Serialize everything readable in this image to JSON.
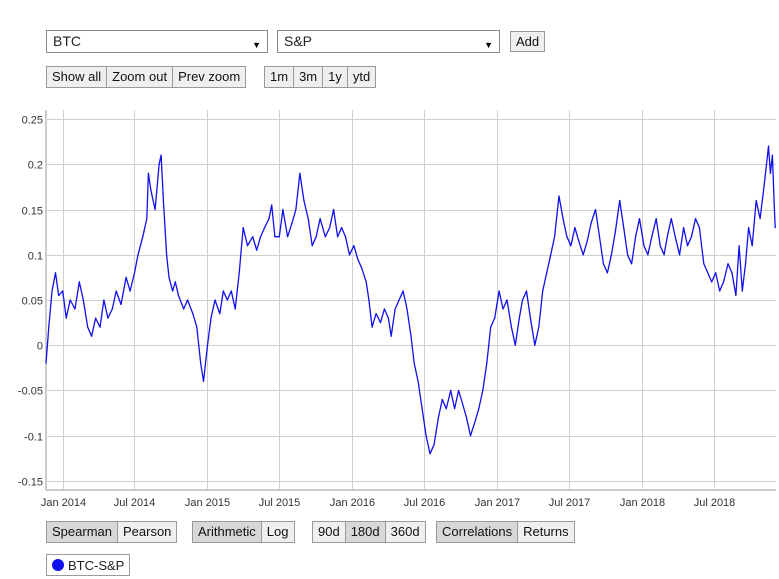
{
  "controls": {
    "asset1": "BTC",
    "asset2": "S&P",
    "add_label": "Add",
    "zoom": [
      "Show all",
      "Zoom out",
      "Prev zoom"
    ],
    "ranges": [
      "1m",
      "3m",
      "1y",
      "ytd"
    ],
    "correlation_methods": [
      "Spearman",
      "Pearson"
    ],
    "correlation_method_selected": "Spearman",
    "return_types": [
      "Arithmetic",
      "Log"
    ],
    "return_type_selected": "Arithmetic",
    "windows": [
      "90d",
      "180d",
      "360d"
    ],
    "window_selected": "180d",
    "views": [
      "Correlations",
      "Returns"
    ],
    "view_selected": "Correlations"
  },
  "legend": {
    "label": "BTC-S&P",
    "color": "#1010ee"
  },
  "chart_data": {
    "type": "line",
    "title": "",
    "xlabel": "",
    "ylabel": "",
    "xlim": [
      "2013-11-20",
      "2018-12-04"
    ],
    "ylim": [
      -0.16,
      0.26
    ],
    "grid": true,
    "y_ticks": [
      "-0.15",
      "-0.1",
      "-0.05",
      "0",
      "0.05",
      "0.1",
      "0.15",
      "0.2",
      "0.25"
    ],
    "x_ticks": [
      {
        "date": "2014-01-01",
        "label": "Jan 2014"
      },
      {
        "date": "2014-07-01",
        "label": "Jul 2014"
      },
      {
        "date": "2015-01-01",
        "label": "Jan 2015"
      },
      {
        "date": "2015-07-01",
        "label": "Jul 2015"
      },
      {
        "date": "2016-01-01",
        "label": "Jan 2016"
      },
      {
        "date": "2016-07-01",
        "label": "Jul 2016"
      },
      {
        "date": "2017-01-01",
        "label": "Jan 2017"
      },
      {
        "date": "2017-07-01",
        "label": "Jul 2017"
      },
      {
        "date": "2018-01-01",
        "label": "Jan 2018"
      },
      {
        "date": "2018-07-01",
        "label": "Jul 2018"
      }
    ],
    "series": [
      {
        "name": "BTC-S&P",
        "color": "#1010ee",
        "points": [
          [
            "2013-11-20",
            -0.02
          ],
          [
            "2013-11-27",
            0.02
          ],
          [
            "2013-12-05",
            0.06
          ],
          [
            "2013-12-14",
            0.08
          ],
          [
            "2013-12-22",
            0.055
          ],
          [
            "2014-01-01",
            0.06
          ],
          [
            "2014-01-10",
            0.03
          ],
          [
            "2014-01-20",
            0.05
          ],
          [
            "2014-02-01",
            0.04
          ],
          [
            "2014-02-12",
            0.07
          ],
          [
            "2014-02-22",
            0.05
          ],
          [
            "2014-03-05",
            0.02
          ],
          [
            "2014-03-15",
            0.01
          ],
          [
            "2014-03-25",
            0.03
          ],
          [
            "2014-04-05",
            0.02
          ],
          [
            "2014-04-15",
            0.05
          ],
          [
            "2014-04-25",
            0.03
          ],
          [
            "2014-05-06",
            0.04
          ],
          [
            "2014-05-16",
            0.06
          ],
          [
            "2014-05-28",
            0.045
          ],
          [
            "2014-06-10",
            0.075
          ],
          [
            "2014-06-20",
            0.06
          ],
          [
            "2014-07-01",
            0.08
          ],
          [
            "2014-07-10",
            0.1
          ],
          [
            "2014-07-22",
            0.12
          ],
          [
            "2014-08-01",
            0.14
          ],
          [
            "2014-08-05",
            0.19
          ],
          [
            "2014-08-12",
            0.17
          ],
          [
            "2014-08-22",
            0.15
          ],
          [
            "2014-09-01",
            0.2
          ],
          [
            "2014-09-06",
            0.21
          ],
          [
            "2014-09-12",
            0.16
          ],
          [
            "2014-09-20",
            0.1
          ],
          [
            "2014-09-26",
            0.075
          ],
          [
            "2014-10-05",
            0.06
          ],
          [
            "2014-10-12",
            0.07
          ],
          [
            "2014-10-20",
            0.055
          ],
          [
            "2014-11-02",
            0.04
          ],
          [
            "2014-11-12",
            0.05
          ],
          [
            "2014-11-25",
            0.035
          ],
          [
            "2014-12-05",
            0.02
          ],
          [
            "2014-12-15",
            -0.02
          ],
          [
            "2014-12-22",
            -0.04
          ],
          [
            "2015-01-01",
            0.0
          ],
          [
            "2015-01-10",
            0.03
          ],
          [
            "2015-01-20",
            0.05
          ],
          [
            "2015-02-01",
            0.035
          ],
          [
            "2015-02-10",
            0.06
          ],
          [
            "2015-02-20",
            0.05
          ],
          [
            "2015-03-02",
            0.06
          ],
          [
            "2015-03-12",
            0.04
          ],
          [
            "2015-03-22",
            0.08
          ],
          [
            "2015-04-01",
            0.13
          ],
          [
            "2015-04-12",
            0.11
          ],
          [
            "2015-04-25",
            0.12
          ],
          [
            "2015-05-05",
            0.105
          ],
          [
            "2015-05-15",
            0.12
          ],
          [
            "2015-05-25",
            0.13
          ],
          [
            "2015-06-05",
            0.14
          ],
          [
            "2015-06-12",
            0.155
          ],
          [
            "2015-06-20",
            0.12
          ],
          [
            "2015-07-01",
            0.12
          ],
          [
            "2015-07-10",
            0.15
          ],
          [
            "2015-07-22",
            0.12
          ],
          [
            "2015-08-02",
            0.135
          ],
          [
            "2015-08-12",
            0.15
          ],
          [
            "2015-08-22",
            0.19
          ],
          [
            "2015-09-01",
            0.16
          ],
          [
            "2015-09-12",
            0.14
          ],
          [
            "2015-09-22",
            0.11
          ],
          [
            "2015-10-02",
            0.12
          ],
          [
            "2015-10-12",
            0.14
          ],
          [
            "2015-10-25",
            0.12
          ],
          [
            "2015-11-05",
            0.13
          ],
          [
            "2015-11-15",
            0.15
          ],
          [
            "2015-11-25",
            0.12
          ],
          [
            "2015-12-05",
            0.13
          ],
          [
            "2015-12-15",
            0.12
          ],
          [
            "2015-12-25",
            0.1
          ],
          [
            "2016-01-05",
            0.11
          ],
          [
            "2016-01-15",
            0.095
          ],
          [
            "2016-01-25",
            0.085
          ],
          [
            "2016-02-05",
            0.07
          ],
          [
            "2016-02-12",
            0.05
          ],
          [
            "2016-02-20",
            0.02
          ],
          [
            "2016-03-01",
            0.035
          ],
          [
            "2016-03-12",
            0.025
          ],
          [
            "2016-03-22",
            0.04
          ],
          [
            "2016-04-01",
            0.03
          ],
          [
            "2016-04-08",
            0.01
          ],
          [
            "2016-04-18",
            0.04
          ],
          [
            "2016-04-28",
            0.05
          ],
          [
            "2016-05-08",
            0.06
          ],
          [
            "2016-05-18",
            0.04
          ],
          [
            "2016-05-28",
            0.01
          ],
          [
            "2016-06-05",
            -0.02
          ],
          [
            "2016-06-15",
            -0.04
          ],
          [
            "2016-06-25",
            -0.07
          ],
          [
            "2016-07-05",
            -0.1
          ],
          [
            "2016-07-15",
            -0.12
          ],
          [
            "2016-07-25",
            -0.11
          ],
          [
            "2016-08-05",
            -0.08
          ],
          [
            "2016-08-15",
            -0.06
          ],
          [
            "2016-08-25",
            -0.07
          ],
          [
            "2016-09-05",
            -0.05
          ],
          [
            "2016-09-15",
            -0.07
          ],
          [
            "2016-09-25",
            -0.05
          ],
          [
            "2016-10-05",
            -0.065
          ],
          [
            "2016-10-15",
            -0.08
          ],
          [
            "2016-10-25",
            -0.1
          ],
          [
            "2016-11-05",
            -0.085
          ],
          [
            "2016-11-15",
            -0.07
          ],
          [
            "2016-11-25",
            -0.05
          ],
          [
            "2016-12-05",
            -0.02
          ],
          [
            "2016-12-15",
            0.02
          ],
          [
            "2016-12-25",
            0.03
          ],
          [
            "2017-01-05",
            0.06
          ],
          [
            "2017-01-15",
            0.04
          ],
          [
            "2017-01-25",
            0.05
          ],
          [
            "2017-02-05",
            0.02
          ],
          [
            "2017-02-15",
            0.0
          ],
          [
            "2017-02-25",
            0.03
          ],
          [
            "2017-03-05",
            0.05
          ],
          [
            "2017-03-15",
            0.06
          ],
          [
            "2017-03-25",
            0.03
          ],
          [
            "2017-04-05",
            0.0
          ],
          [
            "2017-04-15",
            0.02
          ],
          [
            "2017-04-25",
            0.06
          ],
          [
            "2017-05-05",
            0.08
          ],
          [
            "2017-05-15",
            0.1
          ],
          [
            "2017-05-25",
            0.12
          ],
          [
            "2017-06-05",
            0.165
          ],
          [
            "2017-06-15",
            0.14
          ],
          [
            "2017-06-25",
            0.12
          ],
          [
            "2017-07-05",
            0.11
          ],
          [
            "2017-07-15",
            0.13
          ],
          [
            "2017-07-25",
            0.115
          ],
          [
            "2017-08-05",
            0.1
          ],
          [
            "2017-08-15",
            0.115
          ],
          [
            "2017-08-25",
            0.135
          ],
          [
            "2017-09-05",
            0.15
          ],
          [
            "2017-09-15",
            0.12
          ],
          [
            "2017-09-25",
            0.09
          ],
          [
            "2017-10-05",
            0.08
          ],
          [
            "2017-10-15",
            0.1
          ],
          [
            "2017-10-25",
            0.125
          ],
          [
            "2017-11-05",
            0.16
          ],
          [
            "2017-11-15",
            0.13
          ],
          [
            "2017-11-25",
            0.1
          ],
          [
            "2017-12-05",
            0.09
          ],
          [
            "2017-12-15",
            0.12
          ],
          [
            "2017-12-25",
            0.14
          ],
          [
            "2018-01-05",
            0.11
          ],
          [
            "2018-01-15",
            0.1
          ],
          [
            "2018-01-25",
            0.12
          ],
          [
            "2018-02-05",
            0.14
          ],
          [
            "2018-02-15",
            0.11
          ],
          [
            "2018-02-25",
            0.1
          ],
          [
            "2018-03-05",
            0.12
          ],
          [
            "2018-03-15",
            0.14
          ],
          [
            "2018-03-25",
            0.12
          ],
          [
            "2018-04-05",
            0.1
          ],
          [
            "2018-04-15",
            0.13
          ],
          [
            "2018-04-25",
            0.11
          ],
          [
            "2018-05-05",
            0.12
          ],
          [
            "2018-05-15",
            0.14
          ],
          [
            "2018-05-25",
            0.13
          ],
          [
            "2018-06-05",
            0.09
          ],
          [
            "2018-06-15",
            0.08
          ],
          [
            "2018-06-25",
            0.07
          ],
          [
            "2018-07-05",
            0.08
          ],
          [
            "2018-07-15",
            0.06
          ],
          [
            "2018-07-25",
            0.07
          ],
          [
            "2018-08-05",
            0.09
          ],
          [
            "2018-08-15",
            0.08
          ],
          [
            "2018-08-25",
            0.055
          ],
          [
            "2018-09-02",
            0.11
          ],
          [
            "2018-09-10",
            0.06
          ],
          [
            "2018-09-18",
            0.09
          ],
          [
            "2018-09-26",
            0.13
          ],
          [
            "2018-10-05",
            0.11
          ],
          [
            "2018-10-15",
            0.16
          ],
          [
            "2018-10-25",
            0.14
          ],
          [
            "2018-11-05",
            0.18
          ],
          [
            "2018-11-10",
            0.2
          ],
          [
            "2018-11-15",
            0.22
          ],
          [
            "2018-11-20",
            0.19
          ],
          [
            "2018-11-25",
            0.21
          ],
          [
            "2018-11-30",
            0.15
          ],
          [
            "2018-12-02",
            0.13
          ]
        ]
      }
    ]
  }
}
